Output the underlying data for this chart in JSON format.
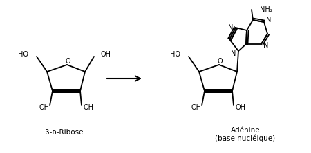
{
  "bg_color": "#ffffff",
  "line_color": "#000000",
  "fig_width": 4.5,
  "fig_height": 2.22,
  "dpi": 100,
  "ribose_label": "β-ᴅ-Ribose",
  "adenine_label": "Adénine\n(base nucléique)",
  "nh2_label": "NH₂",
  "ho_label": "HO",
  "oh_label": "OH",
  "o_label": "O",
  "n_label": "N"
}
